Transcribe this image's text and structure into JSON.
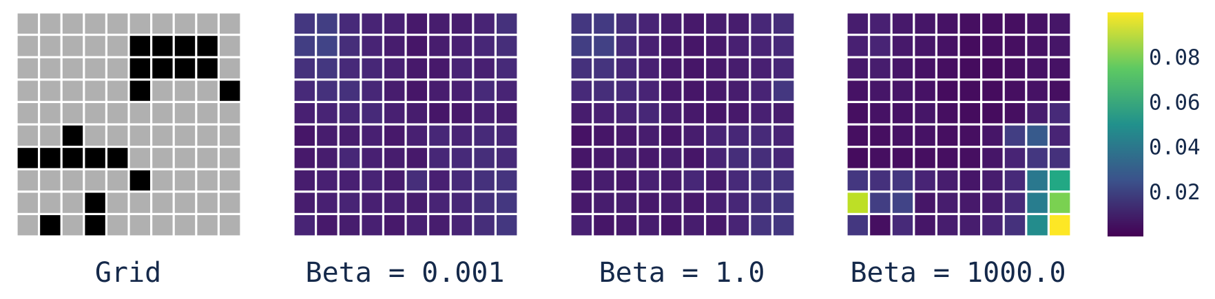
{
  "chart_data": [
    {
      "type": "heatmap",
      "title": "Grid",
      "colors": {
        "free": "#b0b0b0",
        "wall": "#000000"
      },
      "values": [
        [
          0,
          0,
          0,
          0,
          0,
          0,
          0,
          0,
          0,
          0
        ],
        [
          0,
          0,
          0,
          0,
          0,
          1,
          1,
          1,
          1,
          0
        ],
        [
          0,
          0,
          0,
          0,
          0,
          1,
          1,
          1,
          1,
          0
        ],
        [
          0,
          0,
          0,
          0,
          0,
          1,
          0,
          0,
          0,
          1
        ],
        [
          0,
          0,
          0,
          0,
          0,
          0,
          0,
          0,
          0,
          0
        ],
        [
          0,
          0,
          1,
          0,
          0,
          0,
          0,
          0,
          0,
          0
        ],
        [
          1,
          1,
          1,
          1,
          1,
          0,
          0,
          0,
          0,
          0
        ],
        [
          0,
          0,
          0,
          0,
          0,
          1,
          0,
          0,
          0,
          0
        ],
        [
          0,
          0,
          0,
          1,
          0,
          0,
          0,
          0,
          0,
          0
        ],
        [
          0,
          1,
          0,
          1,
          0,
          0,
          0,
          0,
          0,
          0
        ]
      ]
    },
    {
      "type": "heatmap",
      "title": "Beta = 0.001",
      "colormap": "viridis",
      "vmin": 0.0,
      "vmax": 0.1,
      "values": [
        [
          0.016,
          0.018,
          0.012,
          0.01,
          0.009,
          0.007,
          0.008,
          0.008,
          0.01,
          0.014
        ],
        [
          0.018,
          0.02,
          0.013,
          0.01,
          0.008,
          0.006,
          0.008,
          0.009,
          0.011,
          0.013
        ],
        [
          0.014,
          0.016,
          0.012,
          0.011,
          0.009,
          0.007,
          0.007,
          0.01,
          0.009,
          0.012
        ],
        [
          0.012,
          0.014,
          0.014,
          0.011,
          0.008,
          0.006,
          0.008,
          0.009,
          0.012,
          0.01
        ],
        [
          0.009,
          0.01,
          0.011,
          0.012,
          0.009,
          0.008,
          0.006,
          0.007,
          0.009,
          0.008
        ],
        [
          0.006,
          0.008,
          0.008,
          0.009,
          0.007,
          0.009,
          0.011,
          0.01,
          0.012,
          0.011
        ],
        [
          0.007,
          0.008,
          0.011,
          0.009,
          0.008,
          0.007,
          0.011,
          0.012,
          0.013,
          0.012
        ],
        [
          0.008,
          0.009,
          0.009,
          0.01,
          0.008,
          0.013,
          0.009,
          0.012,
          0.014,
          0.015
        ],
        [
          0.008,
          0.009,
          0.01,
          0.009,
          0.009,
          0.008,
          0.01,
          0.011,
          0.014,
          0.016
        ],
        [
          0.01,
          0.007,
          0.008,
          0.009,
          0.007,
          0.009,
          0.008,
          0.01,
          0.013,
          0.016
        ]
      ]
    },
    {
      "type": "heatmap",
      "title": "Beta = 1.0",
      "colormap": "viridis",
      "vmin": 0.0,
      "vmax": 0.1,
      "values": [
        [
          0.016,
          0.017,
          0.013,
          0.01,
          0.008,
          0.007,
          0.008,
          0.008,
          0.011,
          0.013
        ],
        [
          0.018,
          0.019,
          0.012,
          0.009,
          0.007,
          0.006,
          0.007,
          0.009,
          0.01,
          0.012
        ],
        [
          0.014,
          0.015,
          0.011,
          0.009,
          0.007,
          0.006,
          0.007,
          0.008,
          0.009,
          0.011
        ],
        [
          0.012,
          0.013,
          0.012,
          0.01,
          0.007,
          0.006,
          0.007,
          0.008,
          0.01,
          0.016
        ],
        [
          0.008,
          0.009,
          0.01,
          0.011,
          0.008,
          0.007,
          0.006,
          0.007,
          0.009,
          0.008
        ],
        [
          0.005,
          0.006,
          0.007,
          0.008,
          0.006,
          0.008,
          0.01,
          0.011,
          0.012,
          0.01
        ],
        [
          0.006,
          0.007,
          0.008,
          0.007,
          0.008,
          0.006,
          0.01,
          0.013,
          0.013,
          0.011
        ],
        [
          0.007,
          0.008,
          0.007,
          0.009,
          0.008,
          0.011,
          0.008,
          0.012,
          0.014,
          0.015
        ],
        [
          0.007,
          0.008,
          0.008,
          0.007,
          0.008,
          0.007,
          0.009,
          0.011,
          0.014,
          0.016
        ],
        [
          0.009,
          0.006,
          0.007,
          0.008,
          0.006,
          0.008,
          0.007,
          0.01,
          0.015,
          0.016
        ]
      ]
    },
    {
      "type": "heatmap",
      "title": "Beta = 1000.0",
      "colormap": "viridis",
      "vmin": 0.0,
      "vmax": 0.1,
      "values": [
        [
          0.008,
          0.009,
          0.007,
          0.006,
          0.005,
          0.004,
          0.004,
          0.004,
          0.005,
          0.006
        ],
        [
          0.009,
          0.01,
          0.007,
          0.006,
          0.005,
          0.003,
          0.004,
          0.004,
          0.005,
          0.006
        ],
        [
          0.007,
          0.008,
          0.006,
          0.005,
          0.004,
          0.003,
          0.003,
          0.004,
          0.005,
          0.005
        ],
        [
          0.005,
          0.006,
          0.006,
          0.005,
          0.003,
          0.003,
          0.003,
          0.004,
          0.005,
          0.004
        ],
        [
          0.004,
          0.005,
          0.005,
          0.006,
          0.004,
          0.003,
          0.003,
          0.004,
          0.008,
          0.012
        ],
        [
          0.004,
          0.004,
          0.005,
          0.005,
          0.004,
          0.004,
          0.006,
          0.018,
          0.028,
          0.01
        ],
        [
          0.003,
          0.004,
          0.004,
          0.004,
          0.004,
          0.004,
          0.006,
          0.01,
          0.016,
          0.014
        ],
        [
          0.016,
          0.014,
          0.016,
          0.01,
          0.008,
          0.006,
          0.008,
          0.012,
          0.04,
          0.06
        ],
        [
          0.09,
          0.018,
          0.02,
          0.006,
          0.008,
          0.007,
          0.008,
          0.012,
          0.042,
          0.08
        ],
        [
          0.016,
          0.004,
          0.012,
          0.006,
          0.008,
          0.008,
          0.01,
          0.014,
          0.048,
          0.1
        ]
      ]
    }
  ],
  "colorbar": {
    "colormap": "viridis",
    "vmin": 0.0,
    "vmax": 0.1,
    "ticks": [
      0.02,
      0.04,
      0.06,
      0.08
    ],
    "tick_labels": [
      "0.02",
      "0.04",
      "0.06",
      "0.08"
    ]
  }
}
